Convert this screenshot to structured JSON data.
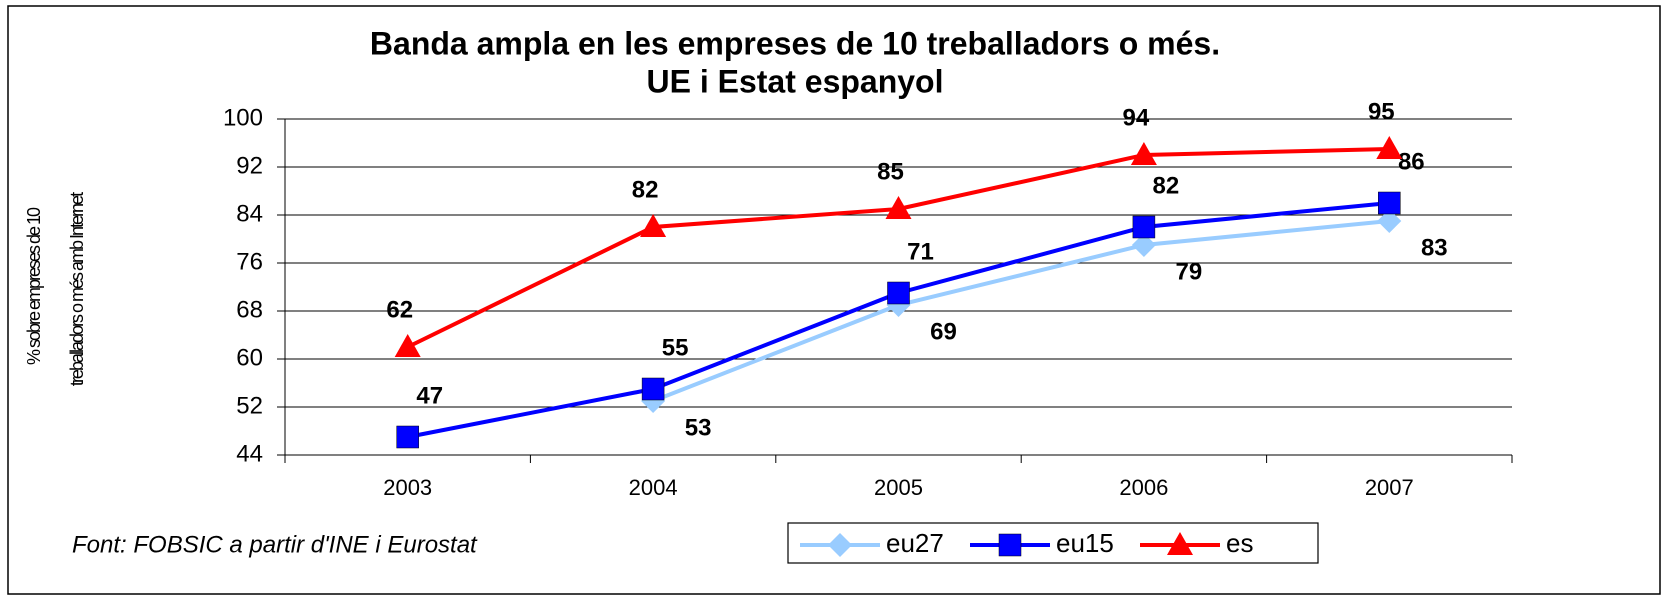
{
  "chart_data": {
    "type": "line",
    "title": [
      "Banda ampla en les empreses de 10 treballadors o més.",
      "UE i Estat espanyol"
    ],
    "y_label": [
      "% sobre empreses de 10",
      "treballadors o més amb Internet"
    ],
    "source": "Font: FOBSIC a partir d'INE i Eurostat",
    "categories": [
      "2003",
      "2004",
      "2005",
      "2006",
      "2007"
    ],
    "series": [
      {
        "name": "eu27",
        "color": "#99ccff",
        "marker": "diamond",
        "values": [
          null,
          53,
          69,
          79,
          83
        ]
      },
      {
        "name": "eu15",
        "color": "#0000ff",
        "marker": "square",
        "values": [
          47,
          55,
          71,
          82,
          86
        ]
      },
      {
        "name": "es",
        "color": "#ff0000",
        "marker": "triangle",
        "values": [
          62,
          82,
          85,
          94,
          95
        ]
      }
    ],
    "ylim": [
      44,
      100
    ],
    "yticks": [
      44,
      52,
      60,
      68,
      76,
      84,
      92,
      100
    ],
    "grid": true,
    "legend": "bottom"
  }
}
